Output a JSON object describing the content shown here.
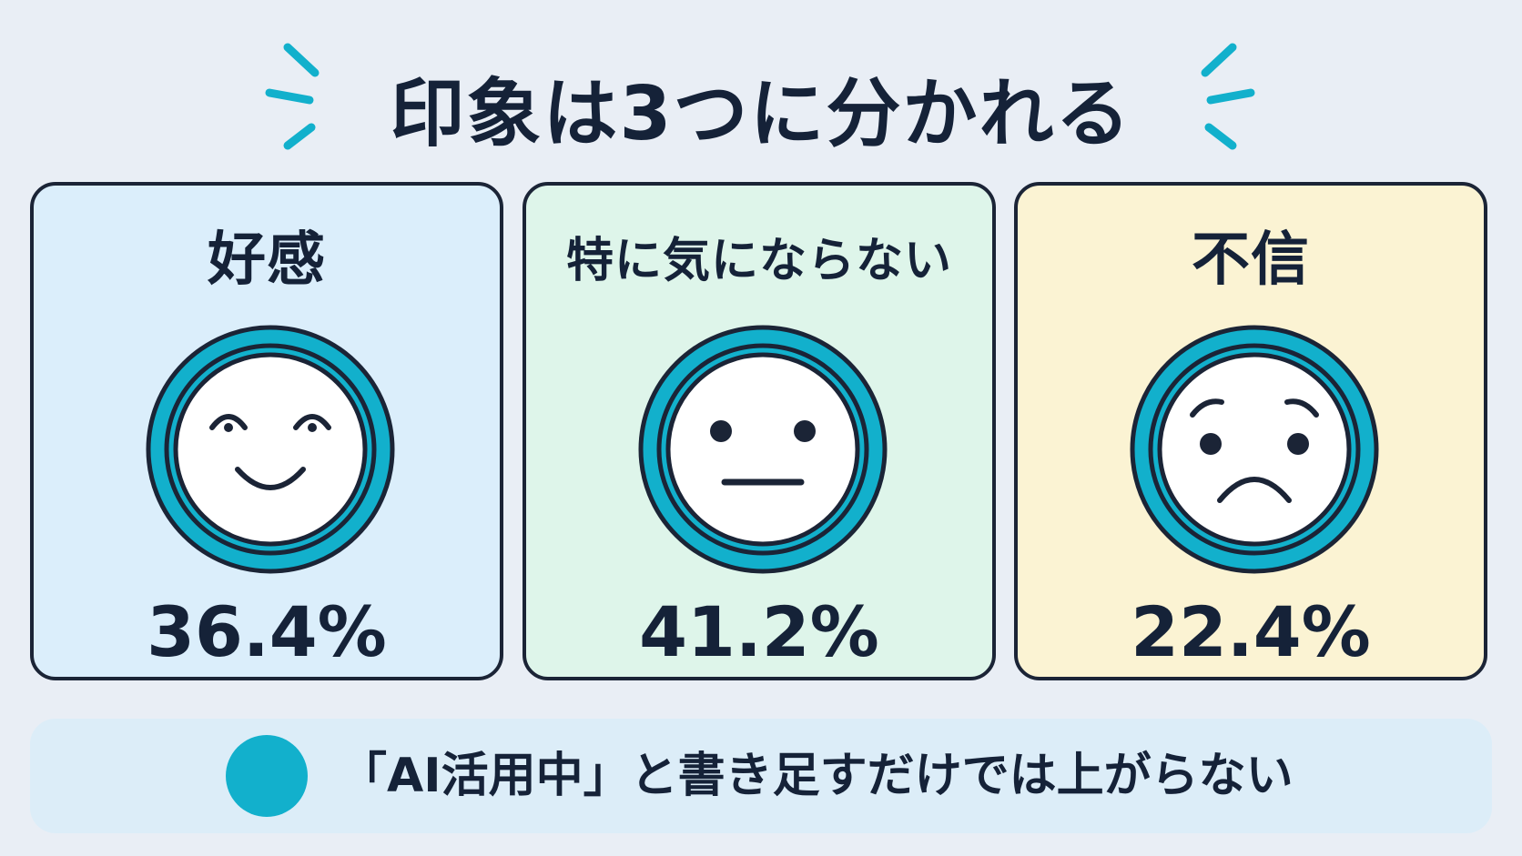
{
  "title": "印象は3つに分かれる",
  "cards": [
    {
      "label": "好感",
      "value": "36.4%",
      "face": "smiling-face-icon"
    },
    {
      "label": "特に気にならない",
      "value": "41.2%",
      "face": "neutral-face-icon"
    },
    {
      "label": "不信",
      "value": "22.4%",
      "face": "worried-face-icon"
    }
  ],
  "footer": {
    "text": "「AI活用中」と書き足すだけでは上がらない",
    "dot_color": "#12b0cc"
  },
  "colors": {
    "accent": "#12b0cc",
    "good_bg": "#dbeefb",
    "neutral_bg": "#def5ea",
    "bad_bg": "#fbf3d3"
  }
}
